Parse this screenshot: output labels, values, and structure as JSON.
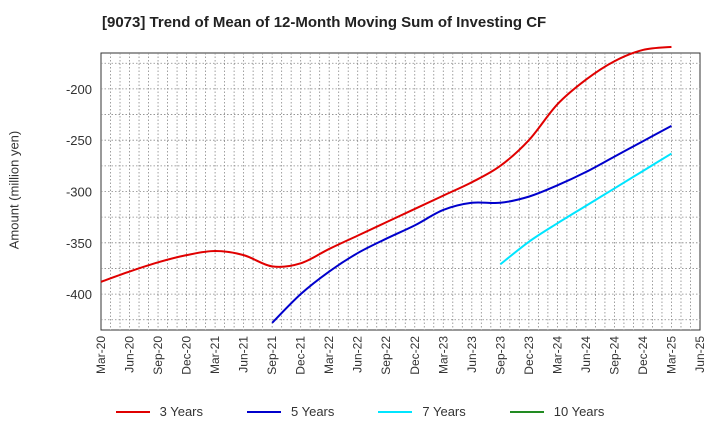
{
  "chart_data": {
    "type": "line",
    "title": "[9073]  Trend of Mean of 12-Month Moving Sum of Investing CF",
    "xlabel": "",
    "ylabel": "Amount (million yen)",
    "ylim": [
      -435,
      -165
    ],
    "yticks": [
      -400,
      -350,
      -300,
      -250,
      -200
    ],
    "categories": [
      "Mar-20",
      "Jun-20",
      "Sep-20",
      "Dec-20",
      "Mar-21",
      "Jun-21",
      "Sep-21",
      "Dec-21",
      "Mar-22",
      "Jun-22",
      "Sep-22",
      "Dec-22",
      "Mar-23",
      "Jun-23",
      "Sep-23",
      "Dec-23",
      "Mar-24",
      "Jun-24",
      "Sep-24",
      "Dec-24",
      "Mar-25",
      "Jun-25"
    ],
    "series": [
      {
        "name": "3 Years",
        "color": "#e00000",
        "values": [
          -388,
          -378,
          -369,
          -362,
          -358,
          -362,
          -373,
          -370,
          -356,
          -343,
          -330,
          -317,
          -304,
          -291,
          -275,
          -250,
          -215,
          -191,
          -173,
          -162,
          -159,
          null
        ]
      },
      {
        "name": "5 Years",
        "color": "#0000cc",
        "values": [
          null,
          null,
          null,
          null,
          null,
          null,
          -428,
          -400,
          -378,
          -360,
          -346,
          -333,
          -318,
          -311,
          -311,
          -305,
          -294,
          -281,
          -266,
          -251,
          -236,
          null
        ]
      },
      {
        "name": "7 Years",
        "color": "#00e5ff",
        "values": [
          null,
          null,
          null,
          null,
          null,
          null,
          null,
          null,
          null,
          null,
          null,
          null,
          null,
          null,
          -371,
          -349,
          -331,
          -314,
          -297,
          -280,
          -263,
          null
        ]
      },
      {
        "name": "10 Years",
        "color": "#228b22",
        "values": [
          null,
          null,
          null,
          null,
          null,
          null,
          null,
          null,
          null,
          null,
          null,
          null,
          null,
          null,
          null,
          null,
          null,
          null,
          null,
          null,
          null,
          null
        ]
      }
    ]
  }
}
